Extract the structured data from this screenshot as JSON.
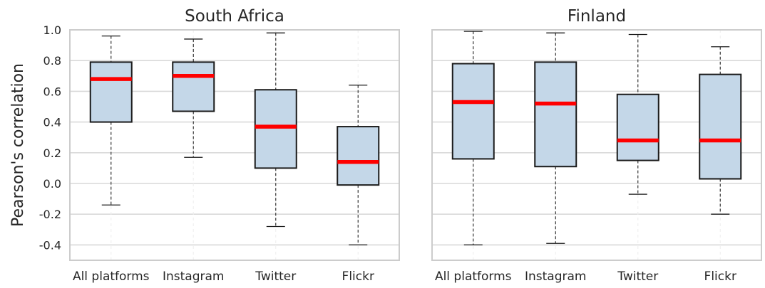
{
  "chart_data": {
    "type": "box",
    "ylabel": "Pearson's correlation",
    "ylim": [
      -0.5,
      1.0
    ],
    "yticks": [
      1.0,
      0.8,
      0.6,
      0.4,
      0.2,
      0.0,
      -0.2,
      -0.4
    ],
    "ytick_labels": [
      "1.0",
      "0.8",
      "0.6",
      "0.4",
      "0.2",
      "0.0",
      "-0.2",
      "-0.4"
    ],
    "categories": [
      "All platforms",
      "Instagram",
      "Twitter",
      "Flickr"
    ],
    "grid": "on",
    "colors": {
      "box_fill": "#c4d7e8",
      "box_edge": "#1a1a1a",
      "median": "#ff0000",
      "grid": "#d9d9d9",
      "frame": "#cccccc"
    },
    "panels": [
      {
        "title": "South Africa",
        "boxes": [
          {
            "category": "All platforms",
            "whisker_low": -0.14,
            "q1": 0.4,
            "median": 0.68,
            "q3": 0.79,
            "whisker_high": 0.96
          },
          {
            "category": "Instagram",
            "whisker_low": 0.17,
            "q1": 0.47,
            "median": 0.7,
            "q3": 0.79,
            "whisker_high": 0.94
          },
          {
            "category": "Twitter",
            "whisker_low": -0.28,
            "q1": 0.1,
            "median": 0.37,
            "q3": 0.61,
            "whisker_high": 0.98
          },
          {
            "category": "Flickr",
            "whisker_low": -0.4,
            "q1": -0.01,
            "median": 0.14,
            "q3": 0.37,
            "whisker_high": 0.64
          }
        ]
      },
      {
        "title": "Finland",
        "boxes": [
          {
            "category": "All platforms",
            "whisker_low": -0.4,
            "q1": 0.16,
            "median": 0.53,
            "q3": 0.78,
            "whisker_high": 0.99
          },
          {
            "category": "Instagram",
            "whisker_low": -0.39,
            "q1": 0.11,
            "median": 0.52,
            "q3": 0.79,
            "whisker_high": 0.98
          },
          {
            "category": "Twitter",
            "whisker_low": -0.07,
            "q1": 0.15,
            "median": 0.28,
            "q3": 0.58,
            "whisker_high": 0.97
          },
          {
            "category": "Flickr",
            "whisker_low": -0.2,
            "q1": 0.03,
            "median": 0.28,
            "q3": 0.71,
            "whisker_high": 0.89
          }
        ]
      }
    ]
  }
}
